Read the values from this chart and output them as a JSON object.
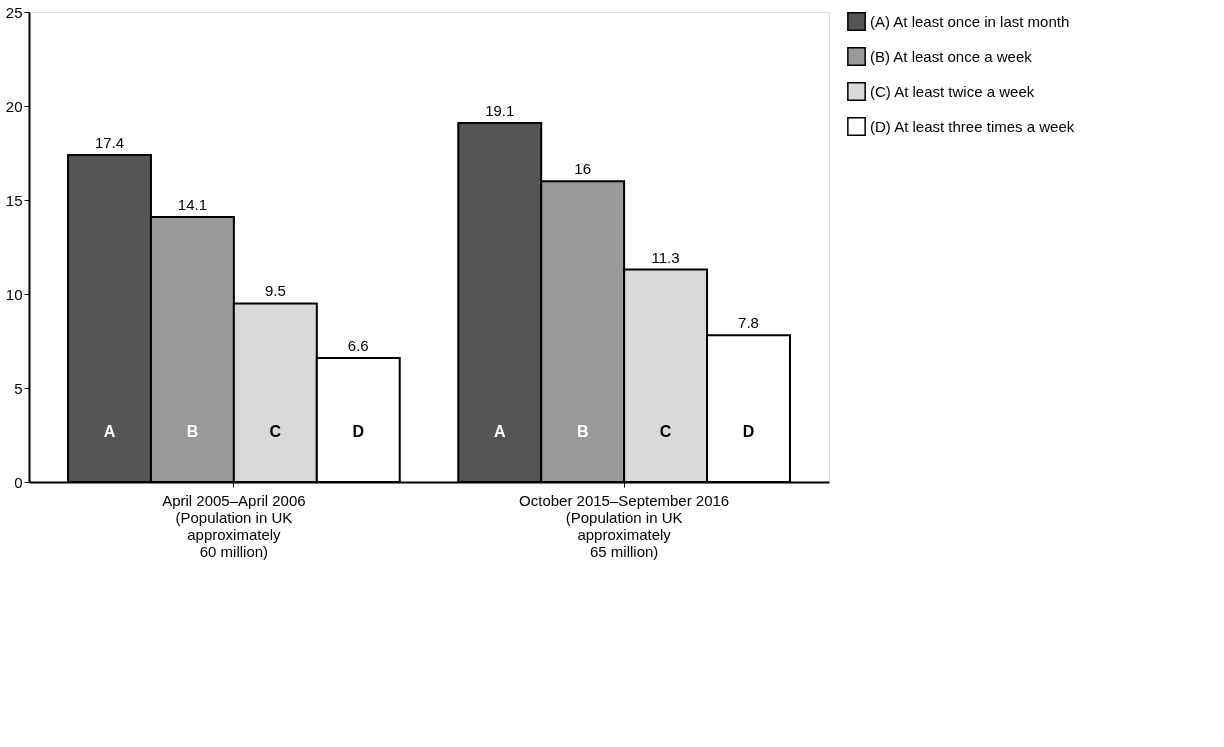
{
  "chart_data": {
    "type": "bar",
    "categories": [
      "April 2005–April 2006\n(Population in UK\napproximately\n60 million)",
      "October 2015–September 2016\n(Population in UK\napproximately\n65 million)"
    ],
    "series": [
      {
        "name": "(A) At least once in last month",
        "color": "#555555",
        "values": [
          17.4,
          19.1
        ]
      },
      {
        "name": "(B) At least once a week",
        "color": "#999999",
        "values": [
          14.1,
          16
        ]
      },
      {
        "name": "(C) At least twice a week",
        "color": "#d9d9d9",
        "values": [
          9.5,
          11.3
        ]
      },
      {
        "name": "(D) At least three times a week",
        "color": "#ffffff",
        "values": [
          6.6,
          7.8
        ]
      }
    ],
    "annotations": [
      "A",
      "B",
      "C",
      "D"
    ],
    "ylim": [
      0,
      25
    ],
    "yticks": [
      0,
      5,
      10,
      15,
      20,
      25
    ],
    "data_labels": true,
    "grid": false,
    "legend": "top right"
  }
}
